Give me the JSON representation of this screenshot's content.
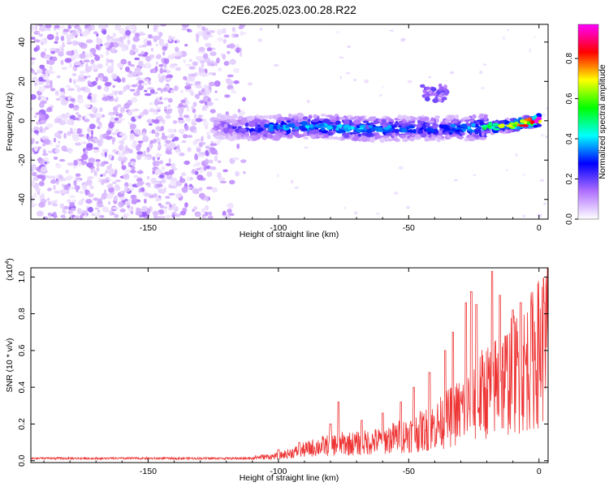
{
  "title": "C2E6.2025.023.00.28.R22",
  "chart_data": [
    {
      "type": "heatmap",
      "title": "C2E6.2025.023.00.28.R22",
      "xlabel": "Height of straight line (km)",
      "ylabel": "Frequency (Hz)",
      "xlim": [
        -195,
        3.5
      ],
      "ylim": [
        -50,
        49
      ],
      "x_ticks": [
        -150,
        -100,
        -50,
        0
      ],
      "y_ticks": [
        -40,
        -20,
        0,
        20,
        40
      ],
      "colorbar": {
        "label": "Normalized spectral amplitude",
        "range": [
          0,
          0.97
        ],
        "ticks": [
          0.0,
          0.2,
          0.4,
          0.6,
          0.8
        ],
        "colors": [
          "#ffffff",
          "#b070ff",
          "#0000ff",
          "#00ffff",
          "#00ff00",
          "#ffff00",
          "#ff0000",
          "#ff00ff"
        ]
      },
      "signal_track": {
        "x": [
          -125,
          -110,
          -100,
          -90,
          -80,
          -70,
          -60,
          -50,
          -40,
          -30,
          -20,
          -15,
          -10,
          -5,
          0
        ],
        "frequency": [
          -3,
          -4,
          -3.5,
          -3,
          -3,
          -4,
          -4,
          -4,
          -4,
          -4,
          -3,
          -3,
          -2,
          -1,
          0
        ],
        "amplitude": [
          0.15,
          0.3,
          0.35,
          0.38,
          0.38,
          0.4,
          0.35,
          0.32,
          0.3,
          0.35,
          0.5,
          0.6,
          0.7,
          0.8,
          0.95
        ]
      },
      "noise_region": {
        "x": [
          -195,
          -125
        ],
        "amplitude": 0.1
      }
    },
    {
      "type": "line",
      "xlabel": "Height of straight line (km)",
      "ylabel": "SNR (10 * v/v)",
      "scale_label": "(x10",
      "scale_exp": "4",
      "xlim": [
        -195,
        3.5
      ],
      "ylim": [
        -0.01,
        1.05
      ],
      "x_ticks": [
        -150,
        -100,
        -50,
        0
      ],
      "y_ticks": [
        0.0,
        0.2,
        0.4,
        0.6,
        0.8,
        1.0
      ],
      "color": "#ee3333",
      "series": [
        {
          "x": [
            -195,
            -180,
            -160,
            -140,
            -120,
            -110,
            -100,
            -95,
            -90,
            -85,
            -80,
            -75,
            -70,
            -65,
            -60,
            -55,
            -50,
            -45,
            -40,
            -35,
            -30,
            -25,
            -20,
            -15,
            -10,
            -5,
            0,
            3
          ],
          "values": [
            0.01,
            0.01,
            0.01,
            0.01,
            0.012,
            0.02,
            0.03,
            0.05,
            0.07,
            0.09,
            0.1,
            0.11,
            0.11,
            0.12,
            0.13,
            0.15,
            0.17,
            0.19,
            0.22,
            0.27,
            0.32,
            0.38,
            0.45,
            0.5,
            0.55,
            0.6,
            0.7,
            0.78
          ],
          "peaks": [
            {
              "x": -100,
              "y": 0.06
            },
            {
              "x": -92,
              "y": 0.1
            },
            {
              "x": -80,
              "y": 0.2
            },
            {
              "x": -77,
              "y": 0.32
            },
            {
              "x": -68,
              "y": 0.22
            },
            {
              "x": -60,
              "y": 0.26
            },
            {
              "x": -53,
              "y": 0.32
            },
            {
              "x": -48,
              "y": 0.4
            },
            {
              "x": -42,
              "y": 0.48
            },
            {
              "x": -36,
              "y": 0.6
            },
            {
              "x": -33,
              "y": 0.7
            },
            {
              "x": -28,
              "y": 0.86
            },
            {
              "x": -26,
              "y": 0.92
            },
            {
              "x": -24,
              "y": 0.85
            },
            {
              "x": -18,
              "y": 1.03
            },
            {
              "x": -15,
              "y": 0.9
            },
            {
              "x": -10,
              "y": 0.82
            },
            {
              "x": -7,
              "y": 0.86
            },
            {
              "x": -3,
              "y": 0.84
            },
            {
              "x": 2,
              "y": 0.86
            }
          ]
        }
      ]
    }
  ]
}
